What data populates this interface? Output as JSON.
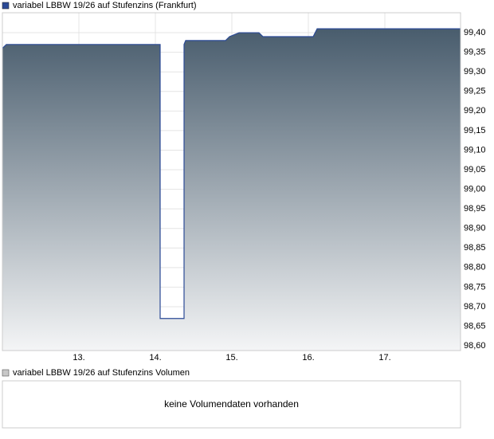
{
  "chart_data": [
    {
      "type": "line",
      "area": true,
      "grid": true,
      "series": [
        {
          "name": "variabel LBBW 19/26 auf Stufenzins (Frankfurt)",
          "color": "#2b4a96",
          "x": [
            12.0,
            12.052,
            14.0625,
            14.0625,
            14.375,
            14.375,
            14.396,
            14.917,
            14.969,
            15.094,
            15.354,
            15.406,
            16.063,
            16.115,
            17.99
          ],
          "values": [
            99.36,
            99.37,
            99.37,
            98.67,
            98.67,
            99.37,
            99.38,
            99.38,
            99.39,
            99.4,
            99.4,
            99.39,
            99.39,
            99.41,
            99.41
          ]
        }
      ],
      "xlim": [
        12.0,
        18.0
      ],
      "xticks": [
        {
          "value": 13,
          "label": "13."
        },
        {
          "value": 14,
          "label": "14."
        },
        {
          "value": 15,
          "label": "15."
        },
        {
          "value": 16,
          "label": "16."
        },
        {
          "value": 17,
          "label": "17."
        }
      ],
      "ylim": [
        98.588,
        99.451
      ],
      "yticks": [
        {
          "value": 98.6,
          "label": "98,60"
        },
        {
          "value": 98.65,
          "label": "98,65"
        },
        {
          "value": 98.7,
          "label": "98,70"
        },
        {
          "value": 98.75,
          "label": "98,75"
        },
        {
          "value": 98.8,
          "label": "98,80"
        },
        {
          "value": 98.85,
          "label": "98,85"
        },
        {
          "value": 98.9,
          "label": "98,90"
        },
        {
          "value": 98.95,
          "label": "98,95"
        },
        {
          "value": 99.0,
          "label": "99,00"
        },
        {
          "value": 99.05,
          "label": "99,05"
        },
        {
          "value": 99.1,
          "label": "99,10"
        },
        {
          "value": 99.15,
          "label": "99,15"
        },
        {
          "value": 99.2,
          "label": "99,20"
        },
        {
          "value": 99.25,
          "label": "99,25"
        },
        {
          "value": 99.3,
          "label": "99,30"
        },
        {
          "value": 99.35,
          "label": "99,35"
        },
        {
          "value": 99.4,
          "label": "99,40"
        }
      ]
    },
    {
      "type": "bar",
      "series": [
        {
          "name": "variabel LBBW 19/26 auf Stufenzins Volumen",
          "color": "#c8c8c8",
          "values": []
        }
      ],
      "message": "keine Volumendaten vorhanden"
    }
  ]
}
